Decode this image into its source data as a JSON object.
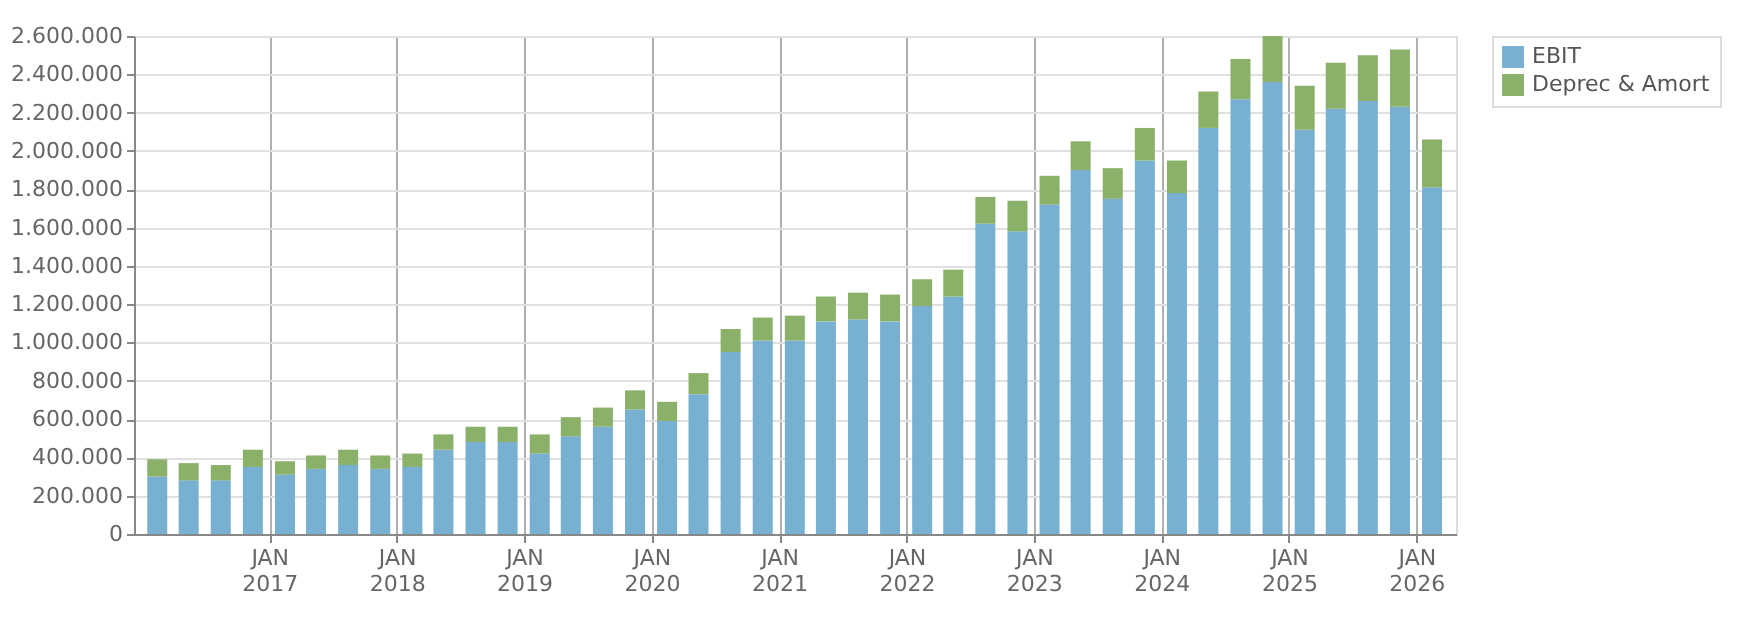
{
  "chart_data": {
    "type": "bar",
    "stacked": true,
    "x": [
      "2016-02-15",
      "2016-05-15",
      "2016-08-15",
      "2016-11-15",
      "2017-02-15",
      "2017-05-15",
      "2017-08-15",
      "2017-11-15",
      "2018-02-15",
      "2018-05-15",
      "2018-08-15",
      "2018-11-15",
      "2019-02-15",
      "2019-05-15",
      "2019-08-15",
      "2019-11-15",
      "2020-02-15",
      "2020-05-15",
      "2020-08-15",
      "2020-11-15",
      "2021-02-15",
      "2021-05-15",
      "2021-08-15",
      "2021-11-15",
      "2022-02-15",
      "2022-05-15",
      "2022-08-15",
      "2022-11-15",
      "2023-02-15",
      "2023-05-15",
      "2023-08-15",
      "2023-11-15",
      "2024-02-15",
      "2024-05-15",
      "2024-08-15",
      "2024-11-15",
      "2025-02-15",
      "2025-05-15",
      "2025-08-15",
      "2025-11-15",
      "2026-02-15"
    ],
    "series": [
      {
        "name": "EBIT",
        "color": "#77b0d1",
        "values": [
          300000,
          280000,
          280000,
          350000,
          310000,
          340000,
          360000,
          340000,
          350000,
          440000,
          480000,
          480000,
          420000,
          510000,
          560000,
          650000,
          590000,
          730000,
          950000,
          1010000,
          1010000,
          1110000,
          1120000,
          1110000,
          1190000,
          1240000,
          1620000,
          1580000,
          1720000,
          1900000,
          1750000,
          1950000,
          1780000,
          2120000,
          2270000,
          2360000,
          2110000,
          2220000,
          2260000,
          2230000,
          1810000
        ]
      },
      {
        "name": "Deprec & Amort",
        "color": "#8ab06a",
        "values": [
          90000,
          90000,
          80000,
          90000,
          70000,
          70000,
          80000,
          70000,
          70000,
          80000,
          80000,
          80000,
          100000,
          100000,
          100000,
          100000,
          100000,
          110000,
          120000,
          120000,
          130000,
          130000,
          140000,
          140000,
          140000,
          140000,
          140000,
          160000,
          150000,
          150000,
          160000,
          170000,
          170000,
          190000,
          210000,
          240000,
          230000,
          240000,
          240000,
          300000,
          250000
        ]
      }
    ],
    "xlim": [
      "2016-01-08",
      "2026-03-27"
    ],
    "xticks": [
      {
        "value": "2017-01-01",
        "label": "JAN 2017"
      },
      {
        "value": "2018-01-01",
        "label": "JAN 2018"
      },
      {
        "value": "2019-01-01",
        "label": "JAN 2019"
      },
      {
        "value": "2020-01-01",
        "label": "JAN 2020"
      },
      {
        "value": "2021-01-01",
        "label": "JAN 2021"
      },
      {
        "value": "2022-01-01",
        "label": "JAN 2022"
      },
      {
        "value": "2023-01-01",
        "label": "JAN 2023"
      },
      {
        "value": "2024-01-01",
        "label": "JAN 2024"
      },
      {
        "value": "2025-01-01",
        "label": "JAN 2025"
      },
      {
        "value": "2026-01-01",
        "label": "JAN 2026"
      }
    ],
    "ylim": [
      0,
      2600000
    ],
    "yticks": [
      0,
      {
        "value": 200000,
        "label": "200.000"
      },
      {
        "value": 400000,
        "label": "400.000"
      },
      {
        "value": 600000,
        "label": "600.000"
      },
      {
        "value": 800000,
        "label": "800.000"
      },
      {
        "value": 1000000,
        "label": "1.000.000"
      },
      {
        "value": 1200000,
        "label": "1.200.000"
      },
      {
        "value": 1400000,
        "label": "1.400.000"
      },
      {
        "value": 1600000,
        "label": "1.600.000"
      },
      {
        "value": 1800000,
        "label": "1.800.000"
      },
      {
        "value": 2000000,
        "label": "2.000.000"
      },
      {
        "value": 2200000,
        "label": "2.200.000"
      },
      {
        "value": 2400000,
        "label": "2.400.000"
      },
      {
        "value": 2600000,
        "label": "2.600.000"
      }
    ],
    "grid": true,
    "legend": "top right"
  }
}
